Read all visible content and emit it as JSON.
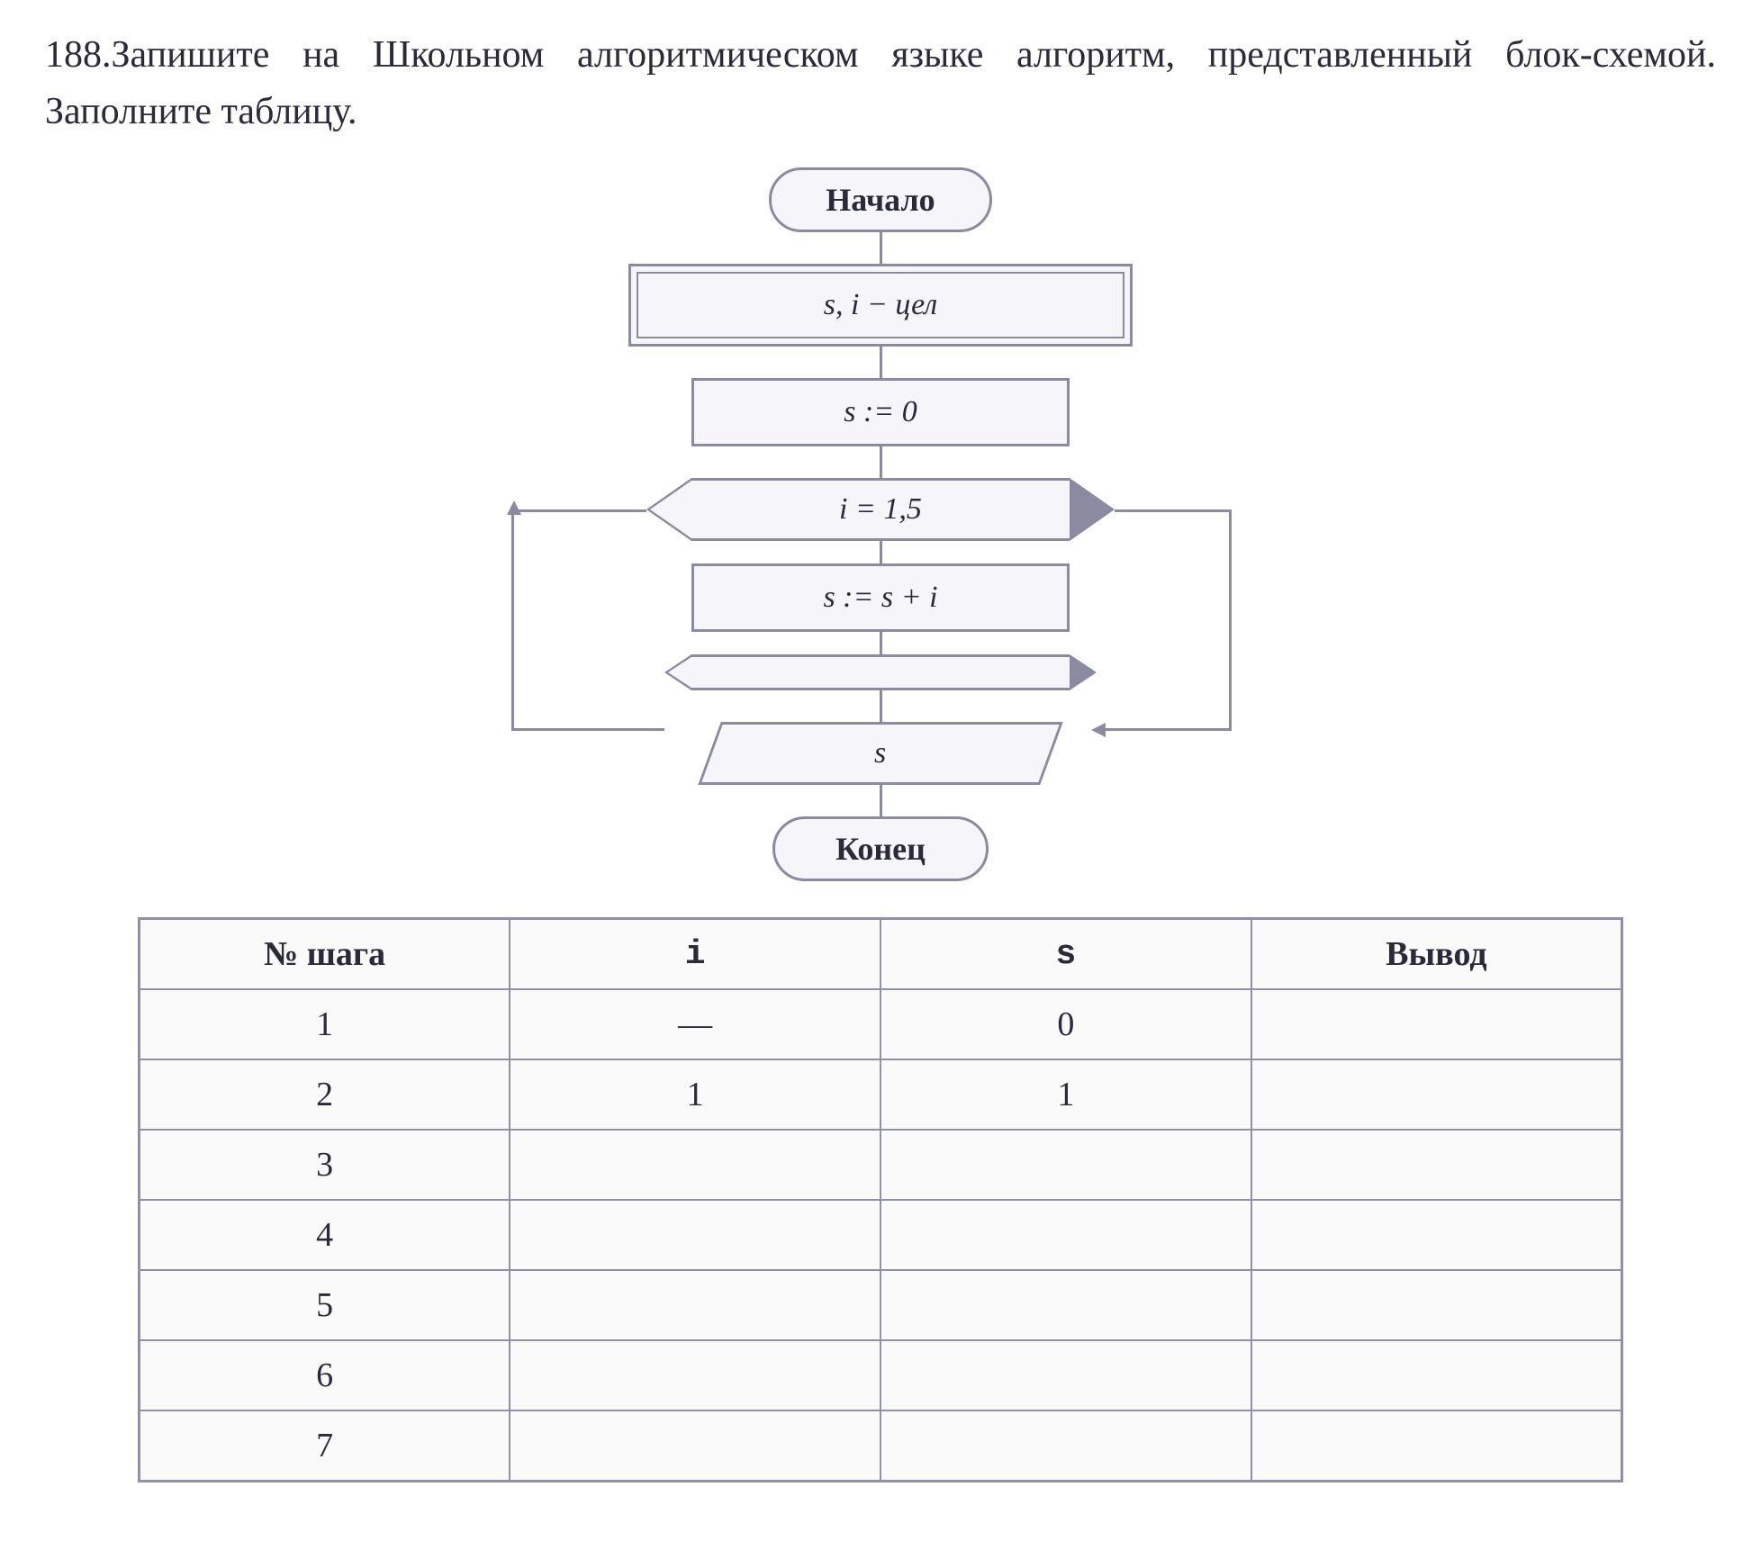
{
  "problem": {
    "number": "188.",
    "text": "Запишите на Школьном алгоритмическом языке алгоритм, представленный блок-схемой. Заполните таблицу."
  },
  "flowchart": {
    "start": "Начало",
    "declaration": "s, i − цел",
    "init": "s := 0",
    "loop_header": "i = 1,5",
    "loop_body": "s := s + i",
    "output": "s",
    "end": "Конец",
    "colors": {
      "border": "#8a8aa0",
      "fill": "#f5f5fa",
      "text": "#2a2a3a"
    }
  },
  "table": {
    "headers": {
      "step": "№ шага",
      "i": "i",
      "s": "s",
      "output": "Вывод"
    },
    "rows": [
      {
        "step": "1",
        "i": "—",
        "s": "0",
        "output": ""
      },
      {
        "step": "2",
        "i": "1",
        "s": "1",
        "output": ""
      },
      {
        "step": "3",
        "i": "",
        "s": "",
        "output": ""
      },
      {
        "step": "4",
        "i": "",
        "s": "",
        "output": ""
      },
      {
        "step": "5",
        "i": "",
        "s": "",
        "output": ""
      },
      {
        "step": "6",
        "i": "",
        "s": "",
        "output": ""
      },
      {
        "step": "7",
        "i": "",
        "s": "",
        "output": ""
      }
    ]
  }
}
